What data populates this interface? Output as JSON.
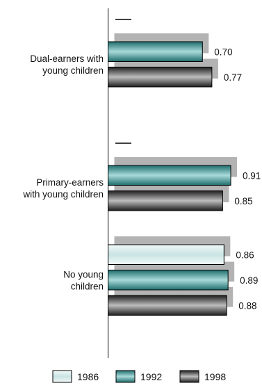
{
  "chart_data": {
    "type": "bar",
    "orientation": "horizontal",
    "title": "",
    "xlabel": "",
    "ylabel": "",
    "xlim": [
      0,
      1.0
    ],
    "grid": false,
    "legend_placement": "bottom",
    "categories": [
      {
        "lines": [
          "Dual-earners with",
          "young children"
        ]
      },
      {
        "lines": [
          "Primary-earners",
          "with young children"
        ]
      },
      {
        "lines": [
          "No young",
          "children"
        ]
      }
    ],
    "series": [
      {
        "name": "1986",
        "values": [
          null,
          null,
          0.86
        ],
        "value_labels": [
          "",
          "",
          "0.86"
        ],
        "color": "#dff0f0"
      },
      {
        "name": "1992",
        "values": [
          0.7,
          0.91,
          0.89
        ],
        "value_labels": [
          "0.70",
          "0.91",
          "0.89"
        ],
        "color": "#4f9e9e"
      },
      {
        "name": "1998",
        "values": [
          0.77,
          0.85,
          0.88
        ],
        "value_labels": [
          "0.77",
          "0.85",
          "0.88"
        ],
        "color": "#7a7a7a"
      }
    ],
    "missing_marker": "—"
  }
}
